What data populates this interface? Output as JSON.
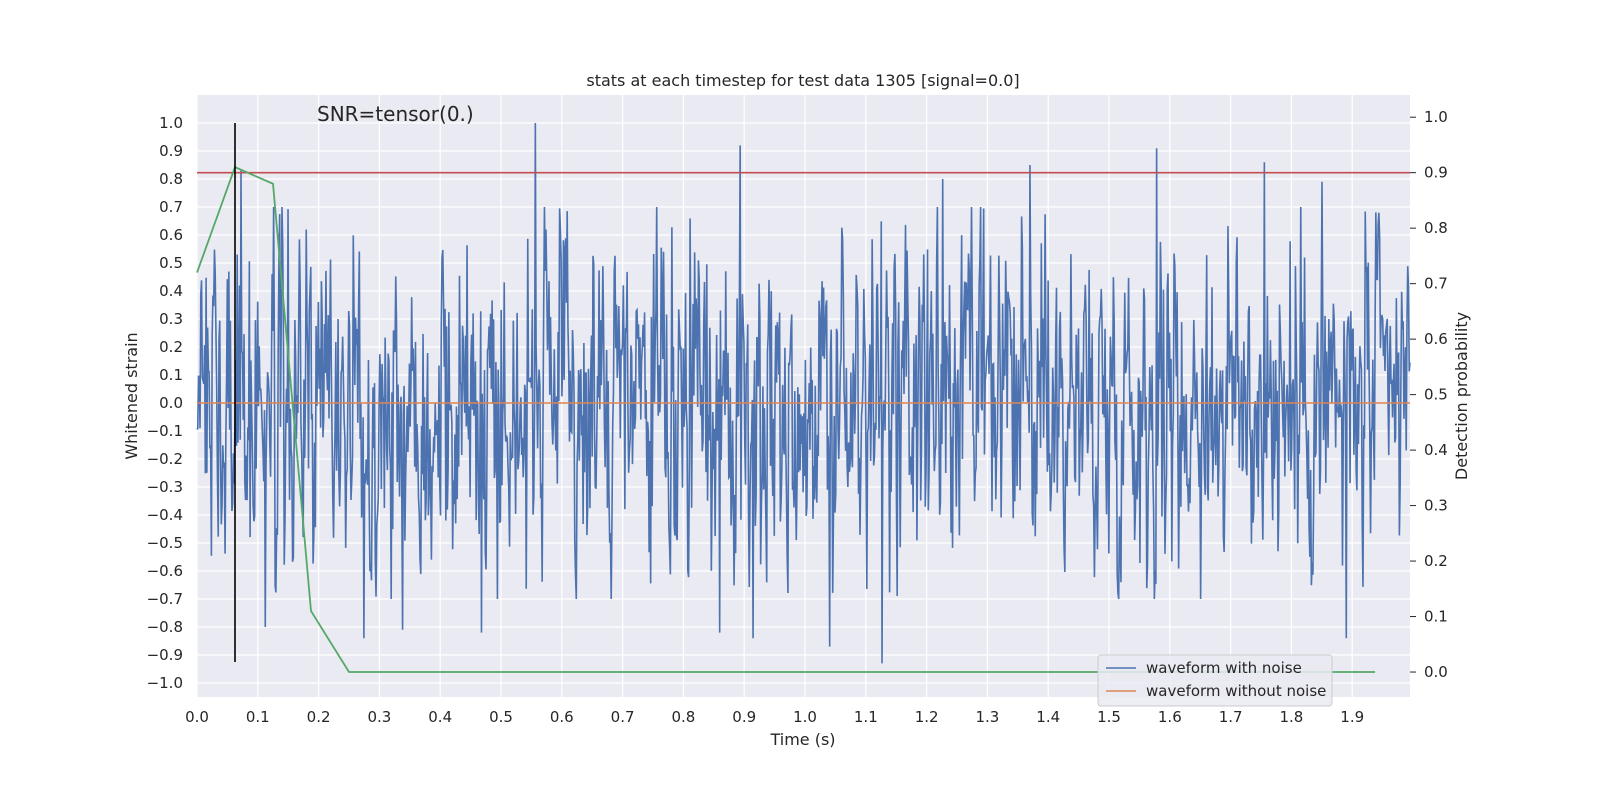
{
  "chart_data": {
    "type": "line",
    "title": "stats at each timestep for test data 1305 [signal=0.0]",
    "xlabel": "Time (s)",
    "ylabel_left": "Whitened strain",
    "ylabel_right": "Detection probability",
    "annotation": "SNR=tensor(0.)",
    "xlim": [
      0.0,
      1.995
    ],
    "ylim_left": [
      -1.05,
      1.1
    ],
    "ylim_right": [
      -0.045,
      1.04
    ],
    "x_ticks": [
      "0.0",
      "0.1",
      "0.2",
      "0.3",
      "0.4",
      "0.5",
      "0.6",
      "0.7",
      "0.8",
      "0.9",
      "1.0",
      "1.1",
      "1.2",
      "1.3",
      "1.4",
      "1.5",
      "1.6",
      "1.7",
      "1.8",
      "1.9"
    ],
    "y_ticks_left": [
      "1.0",
      "0.9",
      "0.8",
      "0.7",
      "0.6",
      "0.5",
      "0.4",
      "0.3",
      "0.2",
      "0.1",
      "0.0",
      "−0.1",
      "−0.2",
      "−0.3",
      "−0.4",
      "−0.5",
      "−0.6",
      "−0.7",
      "−0.8",
      "−0.9",
      "−1.0"
    ],
    "y_ticks_right": [
      "1.0",
      "0.9",
      "0.8",
      "0.7",
      "0.6",
      "0.5",
      "0.4",
      "0.3",
      "0.2",
      "0.1",
      "0.0"
    ],
    "grid": true,
    "legend_position": "lower-right",
    "series": [
      {
        "name": "waveform with noise",
        "axis": "left",
        "color": "#4c72b0",
        "noise": {
          "x_start": 0.0,
          "x_end": 1.995,
          "samples": 1600,
          "typical_abs_range": [
            -0.6,
            0.6
          ]
        },
        "peaks": [
          {
            "x": 0.072,
            "y": 0.83
          },
          {
            "x": 0.556,
            "y": 1.0
          },
          {
            "x": 0.893,
            "y": 0.92
          },
          {
            "x": 1.127,
            "y": 0.79
          },
          {
            "x": 1.226,
            "y": 0.8
          },
          {
            "x": 1.37,
            "y": 0.85
          },
          {
            "x": 1.578,
            "y": 0.91
          },
          {
            "x": 1.755,
            "y": 0.86
          },
          {
            "x": 1.85,
            "y": 0.79
          },
          {
            "x": 0.275,
            "y": -0.84
          },
          {
            "x": 0.338,
            "y": -0.81
          },
          {
            "x": 0.468,
            "y": -0.82
          },
          {
            "x": 0.86,
            "y": -0.82
          },
          {
            "x": 0.914,
            "y": -0.84
          },
          {
            "x": 1.04,
            "y": -0.87
          },
          {
            "x": 1.127,
            "y": -0.93
          },
          {
            "x": 1.89,
            "y": -0.84
          },
          {
            "x": 0.112,
            "y": -0.8
          }
        ]
      },
      {
        "name": "waveform without noise",
        "axis": "left",
        "color": "#dd8452",
        "x": [
          0.0,
          1.995
        ],
        "y": [
          0.0,
          0.0
        ]
      },
      {
        "name": "",
        "axis": "right",
        "color": "#55a868",
        "x": [
          0.0,
          0.0625,
          0.125,
          0.1875,
          0.25,
          1.9375
        ],
        "y": [
          0.72,
          0.91,
          0.88,
          0.11,
          0.0,
          0.0
        ]
      }
    ],
    "hlines": [
      {
        "axis": "right",
        "y": 0.9,
        "color": "#c44e52"
      }
    ],
    "vlines": [
      {
        "x": 0.0625,
        "y_left_range": [
          -0.925,
          1.0
        ],
        "color": "#000000"
      }
    ]
  }
}
